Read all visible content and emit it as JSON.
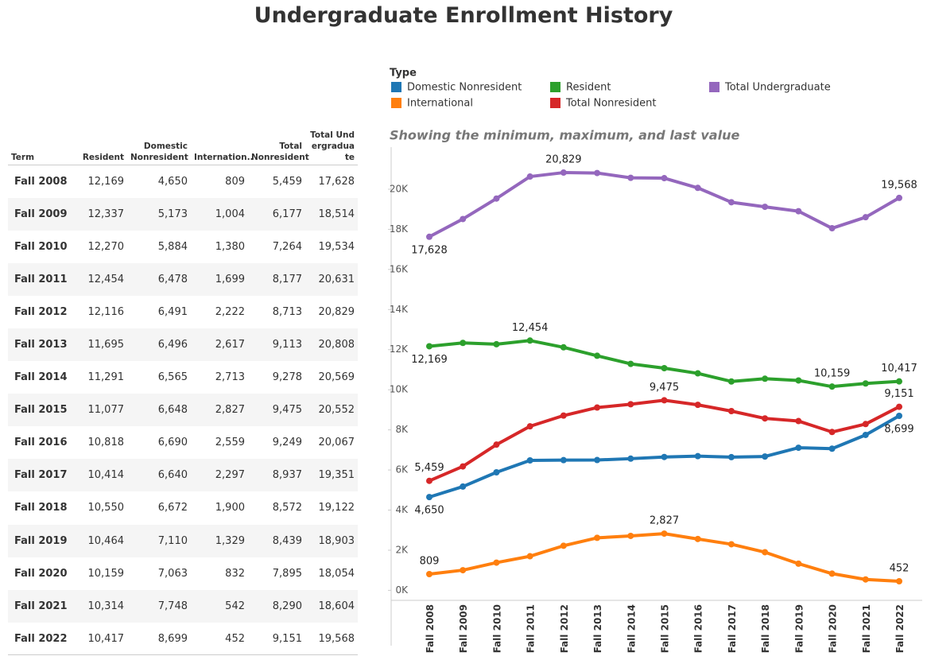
{
  "header": {
    "title": "Undergraduate Enrollment History"
  },
  "table": {
    "columns": [
      "Term",
      "Resident",
      "Domestic Nonresident",
      "Internation..",
      "Total Nonresident",
      "Total Undergraduate"
    ],
    "rows": [
      [
        "Fall 2008",
        "12,169",
        "4,650",
        "809",
        "5,459",
        "17,628"
      ],
      [
        "Fall 2009",
        "12,337",
        "5,173",
        "1,004",
        "6,177",
        "18,514"
      ],
      [
        "Fall 2010",
        "12,270",
        "5,884",
        "1,380",
        "7,264",
        "19,534"
      ],
      [
        "Fall 2011",
        "12,454",
        "6,478",
        "1,699",
        "8,177",
        "20,631"
      ],
      [
        "Fall 2012",
        "12,116",
        "6,491",
        "2,222",
        "8,713",
        "20,829"
      ],
      [
        "Fall 2013",
        "11,695",
        "6,496",
        "2,617",
        "9,113",
        "20,808"
      ],
      [
        "Fall 2014",
        "11,291",
        "6,565",
        "2,713",
        "9,278",
        "20,569"
      ],
      [
        "Fall 2015",
        "11,077",
        "6,648",
        "2,827",
        "9,475",
        "20,552"
      ],
      [
        "Fall 2016",
        "10,818",
        "6,690",
        "2,559",
        "9,249",
        "20,067"
      ],
      [
        "Fall 2017",
        "10,414",
        "6,640",
        "2,297",
        "8,937",
        "19,351"
      ],
      [
        "Fall 2018",
        "10,550",
        "6,672",
        "1,900",
        "8,572",
        "19,122"
      ],
      [
        "Fall 2019",
        "10,464",
        "7,110",
        "1,329",
        "8,439",
        "18,903"
      ],
      [
        "Fall 2020",
        "10,159",
        "7,063",
        "832",
        "7,895",
        "18,054"
      ],
      [
        "Fall 2021",
        "10,314",
        "7,748",
        "542",
        "8,290",
        "18,604"
      ],
      [
        "Fall 2022",
        "10,417",
        "8,699",
        "452",
        "9,151",
        "19,568"
      ]
    ]
  },
  "chart_data": {
    "type": "line",
    "title": "Showing the minimum, maximum, and last value",
    "legend_title": "Type",
    "categories": [
      "Fall 2008",
      "Fall 2009",
      "Fall 2010",
      "Fall 2011",
      "Fall 2012",
      "Fall 2013",
      "Fall 2014",
      "Fall 2015",
      "Fall 2016",
      "Fall 2017",
      "Fall 2018",
      "Fall 2019",
      "Fall 2020",
      "Fall 2021",
      "Fall 2022"
    ],
    "series": [
      {
        "name": "Domestic Nonresident",
        "color": "#1f77b4",
        "values": [
          4650,
          5173,
          5884,
          6478,
          6491,
          6496,
          6565,
          6648,
          6690,
          6640,
          6672,
          7110,
          7063,
          7748,
          8699
        ],
        "value_labels": [
          "4,650",
          null,
          null,
          null,
          null,
          null,
          null,
          null,
          null,
          null,
          null,
          null,
          null,
          null,
          "8,699"
        ]
      },
      {
        "name": "International",
        "color": "#ff7f0e",
        "values": [
          809,
          1004,
          1380,
          1699,
          2222,
          2617,
          2713,
          2827,
          2559,
          2297,
          1900,
          1329,
          832,
          542,
          452
        ],
        "value_labels": [
          "809",
          null,
          null,
          null,
          null,
          null,
          null,
          "2,827",
          null,
          null,
          null,
          null,
          null,
          null,
          "452"
        ]
      },
      {
        "name": "Resident",
        "color": "#2ca02c",
        "values": [
          12169,
          12337,
          12270,
          12454,
          12116,
          11695,
          11291,
          11077,
          10818,
          10414,
          10550,
          10464,
          10159,
          10314,
          10417
        ],
        "value_labels": [
          "12,169",
          null,
          null,
          "12,454",
          null,
          null,
          null,
          null,
          null,
          null,
          null,
          null,
          "10,159",
          null,
          "10,417"
        ]
      },
      {
        "name": "Total Nonresident",
        "color": "#d62728",
        "values": [
          5459,
          6177,
          7264,
          8177,
          8713,
          9113,
          9278,
          9475,
          9249,
          8937,
          8572,
          8439,
          7895,
          8290,
          9151
        ],
        "value_labels": [
          "5,459",
          null,
          null,
          null,
          null,
          null,
          null,
          "9,475",
          null,
          null,
          null,
          null,
          null,
          null,
          "9,151"
        ]
      },
      {
        "name": "Total Undergraduate",
        "color": "#9467bd",
        "values": [
          17628,
          18514,
          19534,
          20631,
          20829,
          20808,
          20569,
          20552,
          20067,
          19351,
          19122,
          18903,
          18054,
          18604,
          19568
        ],
        "value_labels": [
          "17,628",
          null,
          null,
          null,
          "20,829",
          null,
          null,
          null,
          null,
          null,
          null,
          null,
          null,
          null,
          "19,568"
        ]
      }
    ],
    "ylim": [
      -500,
      22100
    ],
    "yticks": [
      {
        "value": 0,
        "label": "0K"
      },
      {
        "value": 2000,
        "label": "2K"
      },
      {
        "value": 4000,
        "label": "4K"
      },
      {
        "value": 6000,
        "label": "6K"
      },
      {
        "value": 8000,
        "label": "8K"
      },
      {
        "value": 10000,
        "label": "10K"
      },
      {
        "value": 12000,
        "label": "12K"
      },
      {
        "value": 14000,
        "label": "14K"
      },
      {
        "value": 16000,
        "label": "16K"
      },
      {
        "value": 18000,
        "label": "18K"
      },
      {
        "value": 20000,
        "label": "20K"
      }
    ]
  }
}
